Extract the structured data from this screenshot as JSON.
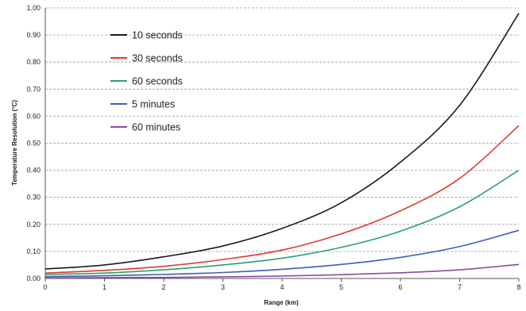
{
  "chart_data": {
    "type": "line",
    "title": "",
    "xlabel": "Range (km)",
    "ylabel": "Temperature Resolution (°C)",
    "xlim": [
      0,
      8
    ],
    "ylim": [
      0,
      1.0
    ],
    "x_ticks": [
      0,
      1,
      2,
      3,
      4,
      5,
      6,
      7,
      8
    ],
    "y_ticks": [
      "0.00",
      "0.10",
      "0.20",
      "0.30",
      "0.40",
      "0.50",
      "0.60",
      "0.70",
      "0.80",
      "0.90",
      "1.00"
    ],
    "grid": "horizontal dashed",
    "legend_placement": "top-left",
    "x": [
      0,
      1,
      2,
      3,
      4,
      5,
      6,
      7,
      8
    ],
    "series": [
      {
        "name": "10 seconds",
        "color": "#1a1a1a",
        "values": [
          0.035,
          0.05,
          0.08,
          0.12,
          0.185,
          0.28,
          0.43,
          0.64,
          0.98
        ]
      },
      {
        "name": "30 seconds",
        "color": "#e0392f",
        "values": [
          0.02,
          0.03,
          0.045,
          0.07,
          0.105,
          0.165,
          0.25,
          0.37,
          0.565
        ]
      },
      {
        "name": "60 seconds",
        "color": "#2e9e6b",
        "values": [
          0.015,
          0.02,
          0.032,
          0.05,
          0.075,
          0.115,
          0.175,
          0.265,
          0.4
        ]
      },
      {
        "name": "5 minutes",
        "color": "#3b5fb5",
        "values": [
          0.007,
          0.01,
          0.015,
          0.022,
          0.034,
          0.052,
          0.078,
          0.118,
          0.178
        ]
      },
      {
        "name": "60 minutes",
        "color": "#8d4a9e",
        "values": [
          0.002,
          0.003,
          0.004,
          0.006,
          0.009,
          0.014,
          0.021,
          0.032,
          0.052
        ]
      }
    ]
  }
}
